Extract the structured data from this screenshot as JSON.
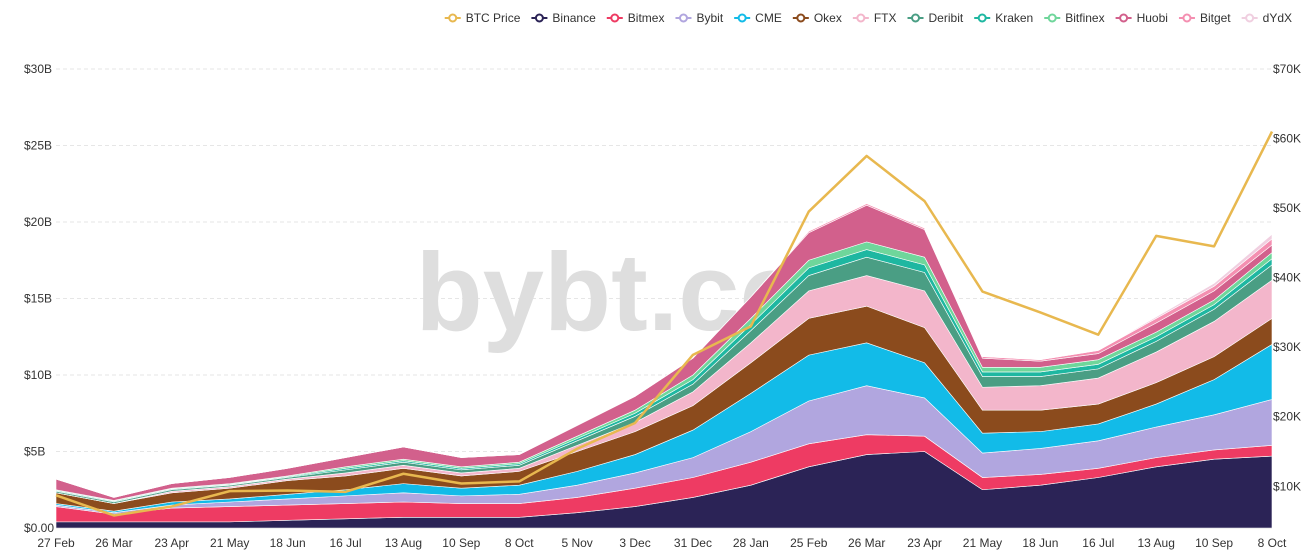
{
  "chart_data": {
    "type": "area",
    "stacked": true,
    "title": "",
    "watermark": "bybt.com",
    "legend_position": "top-right",
    "grid": true,
    "x_labels": [
      "27 Feb",
      "26 Mar",
      "23 Apr",
      "21 May",
      "18 Jun",
      "16 Jul",
      "13 Aug",
      "10 Sep",
      "8 Oct",
      "5 Nov",
      "3 Dec",
      "31 Dec",
      "28 Jan",
      "25 Feb",
      "26 Mar",
      "23 Apr",
      "21 May",
      "18 Jun",
      "16 Jul",
      "13 Aug",
      "10 Sep",
      "8 Oct"
    ],
    "y_left": {
      "ticks": [
        "$0.00",
        "$5B",
        "$10B",
        "$15B",
        "$20B",
        "$25B",
        "$30B"
      ],
      "min": 0,
      "max": 30,
      "unit": "B USD"
    },
    "y_right": {
      "ticks": [
        "$10K",
        "$20K",
        "$30K",
        "$40K",
        "$50K",
        "$60K",
        "$70K"
      ],
      "min": 4000,
      "max": 70000,
      "unit": "USD"
    },
    "series": [
      {
        "name": "Binance",
        "color": "#2b2356",
        "values": [
          0.4,
          0.4,
          0.4,
          0.4,
          0.5,
          0.6,
          0.7,
          0.7,
          0.7,
          1.0,
          1.4,
          2.0,
          2.8,
          4.0,
          4.8,
          5.0,
          2.5,
          2.8,
          3.3,
          4.0,
          4.5,
          4.7
        ]
      },
      {
        "name": "Bitmex",
        "color": "#ee3b63",
        "values": [
          1.0,
          0.5,
          0.9,
          1.0,
          1.0,
          1.0,
          1.0,
          0.9,
          0.9,
          1.0,
          1.2,
          1.3,
          1.5,
          1.5,
          1.3,
          1.0,
          0.8,
          0.7,
          0.6,
          0.6,
          0.6,
          0.7
        ]
      },
      {
        "name": "Bybit",
        "color": "#b1a6df",
        "values": [
          0.1,
          0.1,
          0.2,
          0.3,
          0.4,
          0.5,
          0.6,
          0.5,
          0.6,
          0.8,
          1.0,
          1.3,
          2.0,
          2.8,
          3.2,
          2.5,
          1.6,
          1.7,
          1.8,
          2.0,
          2.3,
          3.0
        ]
      },
      {
        "name": "CME",
        "color": "#12bbe8",
        "values": [
          0.1,
          0.1,
          0.2,
          0.2,
          0.3,
          0.4,
          0.6,
          0.5,
          0.6,
          0.9,
          1.2,
          1.8,
          2.5,
          3.0,
          2.8,
          2.3,
          1.3,
          1.1,
          1.1,
          1.5,
          2.3,
          3.6
        ]
      },
      {
        "name": "Okex",
        "color": "#8b4b1d",
        "values": [
          0.7,
          0.5,
          0.6,
          0.7,
          0.9,
          0.9,
          1.0,
          0.8,
          0.9,
          1.3,
          1.5,
          1.6,
          2.0,
          2.4,
          2.4,
          2.3,
          1.5,
          1.4,
          1.3,
          1.4,
          1.5,
          1.7
        ]
      },
      {
        "name": "FTX",
        "color": "#f3b6cb",
        "values": [
          0.0,
          0.0,
          0.1,
          0.1,
          0.1,
          0.2,
          0.2,
          0.2,
          0.2,
          0.4,
          0.6,
          0.9,
          1.3,
          1.8,
          2.0,
          2.4,
          1.5,
          1.6,
          1.7,
          2.0,
          2.3,
          2.5
        ]
      },
      {
        "name": "Deribit",
        "color": "#4a9e84",
        "values": [
          0.1,
          0.1,
          0.1,
          0.1,
          0.1,
          0.2,
          0.2,
          0.2,
          0.2,
          0.3,
          0.4,
          0.5,
          0.8,
          1.0,
          1.2,
          1.2,
          0.7,
          0.6,
          0.6,
          0.7,
          0.8,
          1.0
        ]
      },
      {
        "name": "Kraken",
        "color": "#1eb7a1",
        "values": [
          0.05,
          0.05,
          0.05,
          0.05,
          0.05,
          0.1,
          0.1,
          0.1,
          0.1,
          0.15,
          0.2,
          0.3,
          0.4,
          0.5,
          0.5,
          0.5,
          0.3,
          0.3,
          0.3,
          0.3,
          0.3,
          0.4
        ]
      },
      {
        "name": "Bitfinex",
        "color": "#6fd69b",
        "values": [
          0.05,
          0.05,
          0.05,
          0.05,
          0.05,
          0.1,
          0.1,
          0.1,
          0.1,
          0.15,
          0.2,
          0.3,
          0.4,
          0.5,
          0.5,
          0.5,
          0.3,
          0.3,
          0.3,
          0.3,
          0.3,
          0.4
        ]
      },
      {
        "name": "Huobi",
        "color": "#d2608c",
        "values": [
          0.7,
          0.2,
          0.3,
          0.4,
          0.5,
          0.6,
          0.8,
          0.6,
          0.5,
          0.7,
          0.9,
          1.1,
          1.4,
          1.8,
          2.4,
          1.8,
          0.6,
          0.4,
          0.4,
          0.6,
          0.6,
          0.5
        ]
      },
      {
        "name": "Bitget",
        "color": "#f48fb1",
        "values": [
          0.0,
          0.0,
          0.0,
          0.0,
          0.0,
          0.0,
          0.0,
          0.0,
          0.0,
          0.0,
          0.0,
          0.0,
          0.0,
          0.1,
          0.1,
          0.1,
          0.1,
          0.1,
          0.2,
          0.3,
          0.3,
          0.4
        ]
      },
      {
        "name": "dYdX",
        "color": "#f0cfe0",
        "values": [
          0.0,
          0.0,
          0.0,
          0.0,
          0.0,
          0.0,
          0.0,
          0.0,
          0.0,
          0.0,
          0.0,
          0.0,
          0.0,
          0.0,
          0.0,
          0.0,
          0.0,
          0.0,
          0.0,
          0.1,
          0.2,
          0.3
        ]
      }
    ],
    "btc_price": {
      "name": "BTC Price",
      "color": "#e8b84f",
      "axis": "right",
      "values": [
        8700,
        5800,
        7100,
        9300,
        9400,
        9200,
        11800,
        10400,
        10700,
        15400,
        19100,
        28900,
        33000,
        49500,
        57500,
        51000,
        38000,
        35000,
        31800,
        46000,
        44500,
        61000
      ]
    },
    "legend": [
      "BTC Price",
      "Binance",
      "Bitmex",
      "Bybit",
      "CME",
      "Okex",
      "FTX",
      "Deribit",
      "Kraken",
      "Bitfinex",
      "Huobi",
      "Bitget",
      "dYdX"
    ]
  }
}
